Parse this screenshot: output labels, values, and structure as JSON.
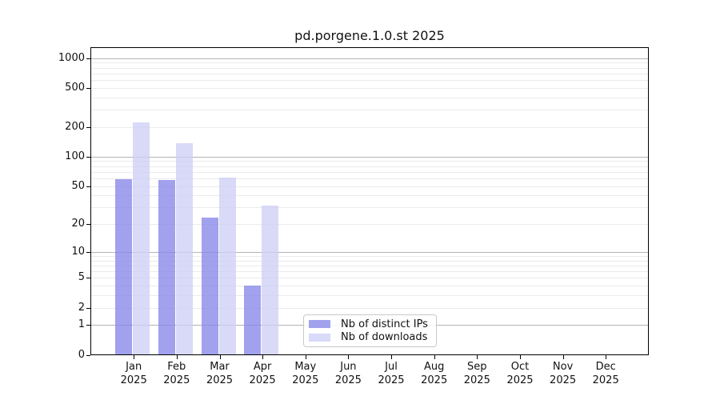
{
  "title": "pd.porgene.1.0.st 2025",
  "chart_data": {
    "type": "bar",
    "title": "pd.porgene.1.0.st 2025",
    "categories": [
      "Jan",
      "Feb",
      "Mar",
      "Apr",
      "May",
      "Jun",
      "Jul",
      "Aug",
      "Sep",
      "Oct",
      "Nov",
      "Dec"
    ],
    "year_label": "2025",
    "series": [
      {
        "name": "Nb of distinct IPs",
        "color": "#8989e9",
        "alpha": 0.8,
        "values": [
          58,
          57,
          23,
          4,
          0,
          0,
          0,
          0,
          0,
          0,
          0,
          0
        ]
      },
      {
        "name": "Nb of downloads",
        "color": "#d0d0f6",
        "alpha": 0.8,
        "values": [
          220,
          137,
          61,
          31,
          0,
          0,
          0,
          0,
          0,
          0,
          0,
          0
        ]
      }
    ],
    "yticks": [
      0,
      1,
      2,
      5,
      10,
      20,
      50,
      100,
      200,
      500,
      1000
    ],
    "y_scale": "log1p",
    "ylim": [
      0,
      1000
    ],
    "grid": "horizontal",
    "legend_position": "lower center",
    "colors": {
      "major_grid": "#b4b4b4",
      "minor_grid": "#ebebeb",
      "axis": "#000000",
      "background": "#ffffff"
    }
  }
}
